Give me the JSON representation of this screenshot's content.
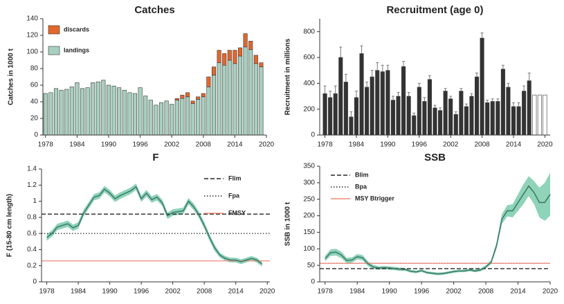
{
  "chart_data": [
    {
      "type": "bar",
      "title": "Catches",
      "y_label": "Catches in 1000 t",
      "x": [
        1978,
        1979,
        1980,
        1981,
        1982,
        1983,
        1984,
        1985,
        1986,
        1987,
        1988,
        1989,
        1990,
        1991,
        1992,
        1993,
        1994,
        1995,
        1996,
        1997,
        1998,
        1999,
        2000,
        2001,
        2002,
        2003,
        2004,
        2005,
        2006,
        2007,
        2008,
        2009,
        2010,
        2011,
        2012,
        2013,
        2014,
        2015,
        2016,
        2017,
        2018,
        2019
      ],
      "series": [
        {
          "name": "landings",
          "color": "#a8d0bf",
          "values": [
            50,
            51,
            56,
            54,
            55,
            58,
            63,
            56,
            57,
            63,
            64,
            66,
            60,
            59,
            57,
            54,
            51,
            50,
            57,
            47,
            42,
            36,
            39,
            41,
            37,
            42,
            44,
            46,
            38,
            43,
            46,
            58,
            72,
            87,
            84,
            90,
            86,
            95,
            106,
            103,
            86,
            82
          ]
        },
        {
          "name": "discards",
          "color": "#e2672d",
          "values": [
            0,
            0,
            0,
            0,
            0,
            0,
            0,
            0,
            0,
            0,
            0,
            0,
            0,
            0,
            0,
            0,
            0,
            0,
            0,
            0,
            0,
            0,
            0,
            0,
            0,
            2,
            4,
            5,
            3,
            3,
            4,
            12,
            10,
            15,
            14,
            12,
            16,
            10,
            16,
            10,
            10,
            5
          ]
        }
      ],
      "xlim": [
        1977.5,
        2020
      ],
      "xticks": [
        1978,
        1984,
        1990,
        1996,
        2002,
        2008,
        2014,
        2020
      ],
      "ylim": [
        0,
        140
      ],
      "yticks": [
        0,
        20,
        40,
        60,
        80,
        100,
        120,
        140
      ],
      "legend": "upper left"
    },
    {
      "type": "bar",
      "title": "Recruitment (age 0)",
      "y_label": "Recruitment in millions",
      "x": [
        1978,
        1979,
        1980,
        1981,
        1982,
        1983,
        1984,
        1985,
        1986,
        1987,
        1988,
        1989,
        1990,
        1991,
        1992,
        1993,
        1994,
        1995,
        1996,
        1997,
        1998,
        1999,
        2000,
        2001,
        2002,
        2003,
        2004,
        2005,
        2006,
        2007,
        2008,
        2009,
        2010,
        2011,
        2012,
        2013,
        2014,
        2015,
        2016,
        2017,
        2018,
        2019,
        2020
      ],
      "series": [
        {
          "values": [
            320,
            290,
            320,
            600,
            410,
            140,
            290,
            630,
            370,
            450,
            500,
            490,
            500,
            270,
            300,
            530,
            300,
            150,
            370,
            260,
            430,
            210,
            190,
            340,
            280,
            160,
            340,
            220,
            300,
            450,
            750,
            250,
            260,
            260,
            510,
            370,
            220,
            220,
            340,
            420,
            310,
            310,
            310
          ],
          "errors": [
            60,
            50,
            60,
            80,
            60,
            40,
            50,
            60,
            40,
            50,
            60,
            50,
            40,
            30,
            30,
            40,
            30,
            20,
            30,
            30,
            30,
            20,
            20,
            20,
            20,
            20,
            20,
            20,
            20,
            30,
            40,
            20,
            20,
            20,
            30,
            30,
            30,
            30,
            40,
            60,
            null,
            null,
            null
          ],
          "bar_colors": [
            "#333333",
            "#333333",
            "#333333",
            "#333333",
            "#333333",
            "#333333",
            "#333333",
            "#333333",
            "#333333",
            "#333333",
            "#333333",
            "#333333",
            "#333333",
            "#333333",
            "#333333",
            "#333333",
            "#333333",
            "#333333",
            "#333333",
            "#333333",
            "#333333",
            "#333333",
            "#333333",
            "#333333",
            "#333333",
            "#333333",
            "#333333",
            "#333333",
            "#333333",
            "#333333",
            "#333333",
            "#333333",
            "#333333",
            "#333333",
            "#333333",
            "#333333",
            "#333333",
            "#333333",
            "#333333",
            "#333333",
            "#ffffff",
            "#ffffff",
            "#ffffff"
          ]
        }
      ],
      "xlim": [
        1977,
        2021
      ],
      "xticks": [
        1978,
        1984,
        1990,
        1996,
        2002,
        2008,
        2014,
        2020
      ],
      "ylim": [
        0,
        900
      ],
      "yticks": [
        0,
        200,
        400,
        600,
        800
      ]
    },
    {
      "type": "line",
      "title": "F",
      "y_label": "F (15-80 cm length)",
      "x": [
        1978,
        1979,
        1980,
        1981,
        1982,
        1983,
        1984,
        1985,
        1986,
        1987,
        1988,
        1989,
        1990,
        1991,
        1992,
        1993,
        1994,
        1995,
        1996,
        1997,
        1998,
        1999,
        2000,
        2001,
        2002,
        2003,
        2004,
        2005,
        2006,
        2007,
        2008,
        2009,
        2010,
        2011,
        2012,
        2013,
        2014,
        2015,
        2016,
        2017,
        2018,
        2019
      ],
      "series": [
        {
          "color": "#3d7b6c",
          "band_color": "#8fd3b9",
          "values": [
            0.55,
            0.6,
            0.68,
            0.7,
            0.72,
            0.67,
            0.7,
            0.85,
            0.95,
            1.05,
            1.07,
            1.15,
            1.1,
            1.03,
            1.07,
            1.1,
            1.13,
            1.18,
            1.03,
            1.1,
            1.02,
            1.05,
            0.98,
            0.82,
            0.86,
            0.87,
            0.88,
            1.0,
            0.93,
            0.83,
            0.7,
            0.55,
            0.42,
            0.33,
            0.29,
            0.27,
            0.27,
            0.25,
            0.27,
            0.29,
            0.27,
            0.22
          ],
          "upper": [
            0.59,
            0.64,
            0.72,
            0.74,
            0.76,
            0.71,
            0.74,
            0.89,
            0.99,
            1.09,
            1.11,
            1.19,
            1.14,
            1.07,
            1.11,
            1.14,
            1.17,
            1.22,
            1.07,
            1.14,
            1.06,
            1.09,
            1.02,
            0.86,
            0.9,
            0.91,
            0.92,
            1.04,
            0.97,
            0.87,
            0.74,
            0.59,
            0.46,
            0.36,
            0.32,
            0.3,
            0.3,
            0.28,
            0.3,
            0.32,
            0.3,
            0.25
          ],
          "lower": [
            0.51,
            0.56,
            0.64,
            0.66,
            0.68,
            0.63,
            0.66,
            0.81,
            0.91,
            1.01,
            1.03,
            1.11,
            1.06,
            0.99,
            1.03,
            1.06,
            1.09,
            1.14,
            0.99,
            1.06,
            0.98,
            1.01,
            0.94,
            0.78,
            0.82,
            0.83,
            0.84,
            0.96,
            0.89,
            0.79,
            0.66,
            0.51,
            0.38,
            0.3,
            0.26,
            0.24,
            0.24,
            0.22,
            0.24,
            0.26,
            0.24,
            0.19
          ]
        }
      ],
      "reference_lines": [
        {
          "name": "Flim",
          "value": 0.84,
          "style": "dashed",
          "color": "#222222"
        },
        {
          "name": "Fpa",
          "value": 0.6,
          "style": "dotted",
          "color": "#222222"
        },
        {
          "name": "FMSY",
          "value": 0.26,
          "style": "solid",
          "color": "#f08a78"
        }
      ],
      "xlim": [
        1977,
        2020.5
      ],
      "xticks": [
        1978,
        1984,
        1990,
        1996,
        2002,
        2008,
        2014,
        2020
      ],
      "ylim": [
        0,
        1.4
      ],
      "yticks": [
        0,
        0.2,
        0.4,
        0.6,
        0.8,
        1,
        1.2,
        1.4
      ],
      "legend": "upper right"
    },
    {
      "type": "line",
      "title": "SSB",
      "y_label": "SSB in 1000 t",
      "x": [
        1978,
        1979,
        1980,
        1981,
        1982,
        1983,
        1984,
        1985,
        1986,
        1987,
        1988,
        1989,
        1990,
        1991,
        1992,
        1993,
        1994,
        1995,
        1996,
        1997,
        1998,
        1999,
        2000,
        2001,
        2002,
        2003,
        2004,
        2005,
        2006,
        2007,
        2008,
        2009,
        2010,
        2011,
        2012,
        2013,
        2014,
        2015,
        2016,
        2017,
        2018,
        2019,
        2020
      ],
      "series": [
        {
          "color": "#3d7b6c",
          "band_color": "#8fd3b9",
          "values": [
            70,
            88,
            90,
            82,
            65,
            66,
            76,
            73,
            55,
            45,
            42,
            43,
            42,
            40,
            38,
            37,
            32,
            30,
            34,
            28,
            26,
            24,
            25,
            28,
            31,
            33,
            33,
            36,
            33,
            36,
            45,
            60,
            110,
            190,
            215,
            215,
            240,
            265,
            290,
            270,
            240,
            240,
            265
          ],
          "upper": [
            78,
            98,
            100,
            92,
            73,
            74,
            84,
            81,
            62,
            51,
            47,
            48,
            47,
            45,
            43,
            41,
            36,
            34,
            38,
            32,
            30,
            28,
            29,
            32,
            35,
            37,
            37,
            40,
            37,
            40,
            50,
            66,
            120,
            205,
            232,
            235,
            265,
            295,
            320,
            305,
            285,
            300,
            330
          ],
          "lower": [
            62,
            78,
            80,
            72,
            57,
            58,
            68,
            65,
            48,
            39,
            37,
            38,
            37,
            35,
            33,
            33,
            28,
            26,
            30,
            24,
            22,
            20,
            21,
            24,
            27,
            29,
            29,
            32,
            29,
            32,
            40,
            54,
            100,
            175,
            198,
            195,
            215,
            235,
            260,
            235,
            195,
            185,
            200
          ]
        }
      ],
      "reference_lines": [
        {
          "name": "Blim",
          "value": 40,
          "style": "dashed",
          "color": "#222222"
        },
        {
          "name": "Bpa",
          "value": 56,
          "style": "dotted",
          "color": "#222222"
        },
        {
          "name": "MSY Btrigger",
          "value": 56,
          "style": "solid",
          "color": "#f08a78"
        }
      ],
      "xlim": [
        1977,
        2020
      ],
      "xticks": [
        1978,
        1984,
        1990,
        1996,
        2002,
        2008,
        2014,
        2020
      ],
      "ylim": [
        0,
        350
      ],
      "yticks": [
        0,
        50,
        100,
        150,
        200,
        250,
        300,
        350
      ],
      "legend": "upper left"
    }
  ]
}
